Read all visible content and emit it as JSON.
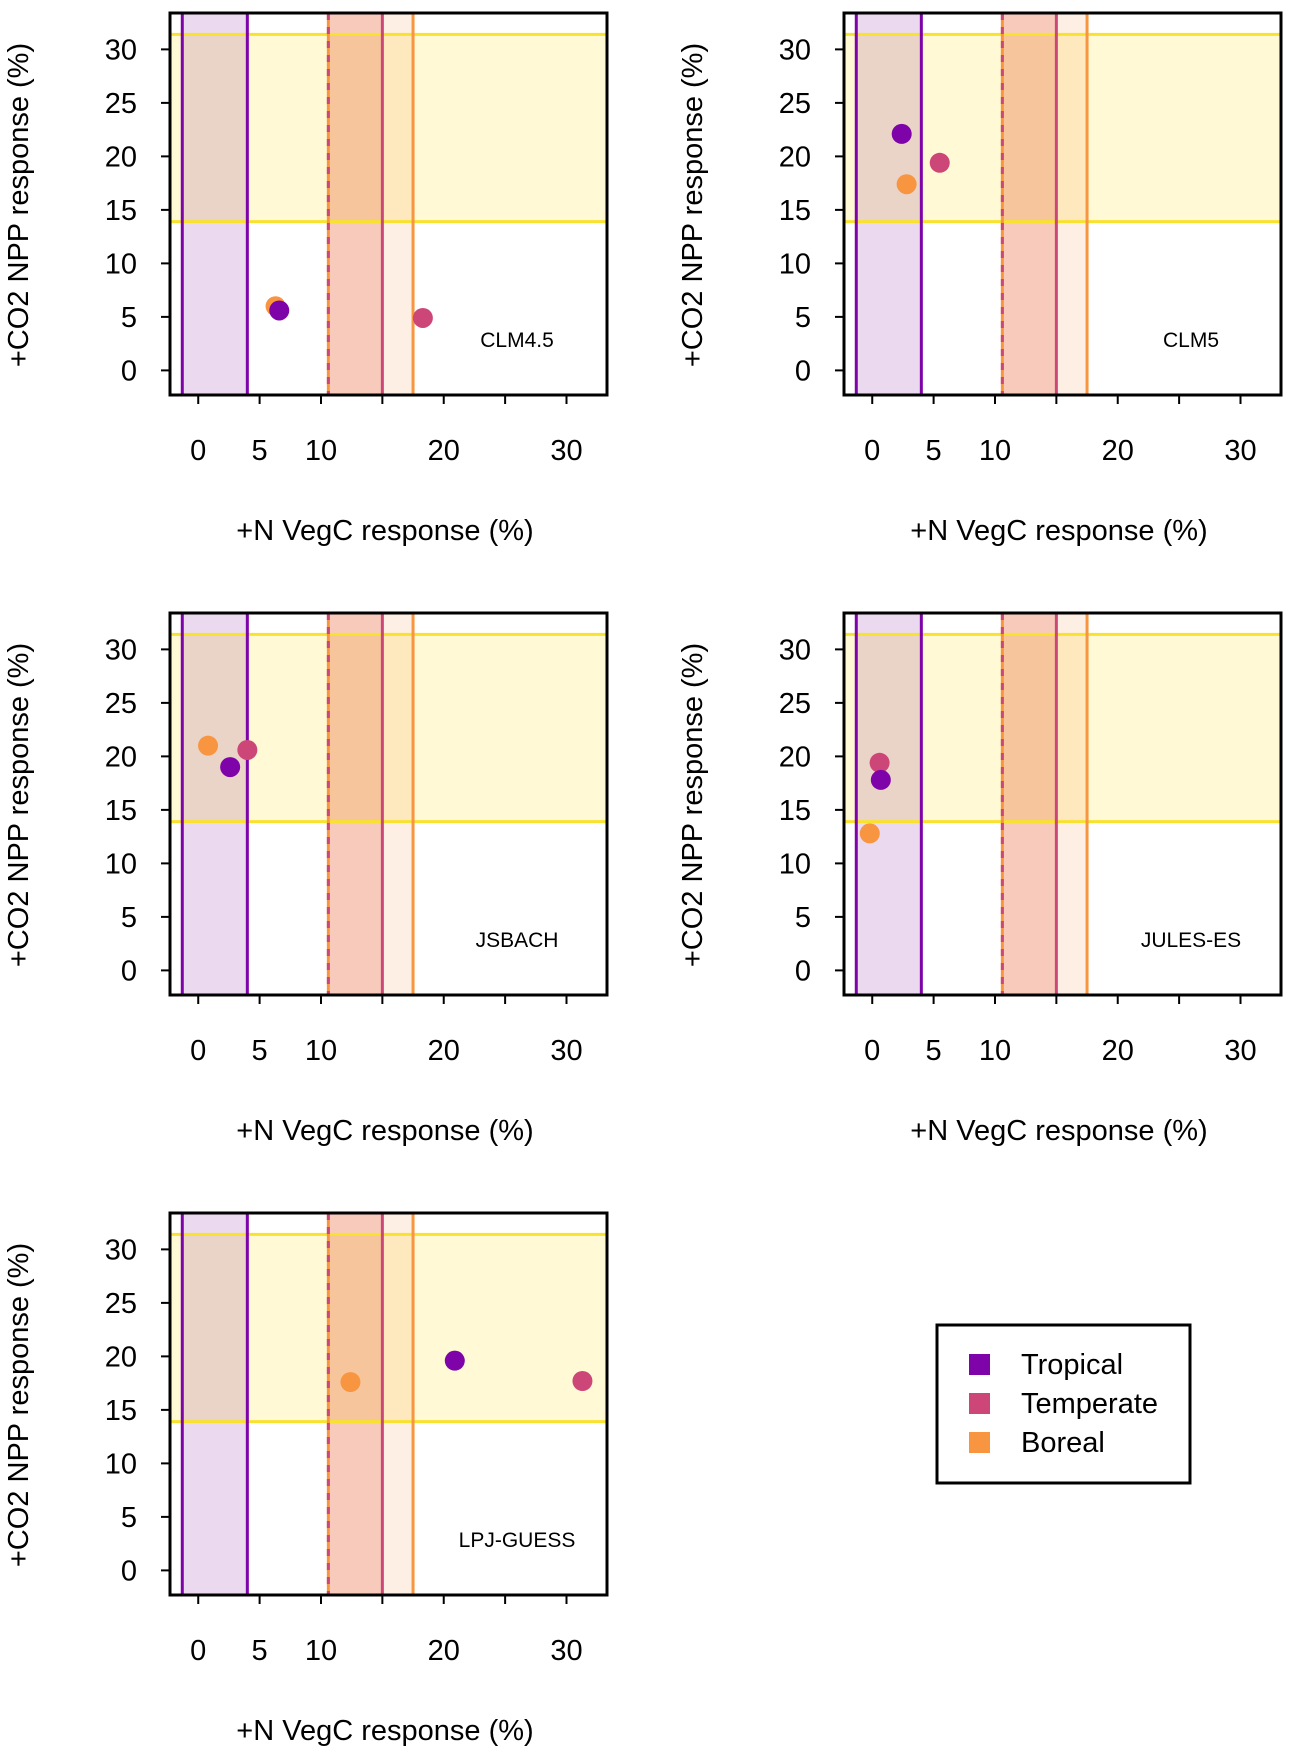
{
  "colors": {
    "Tropical": "#7E03A8",
    "Temperate": "#CC4778",
    "Boreal": "#F89540",
    "yellow_line": "#F9E22F",
    "yellow_fill": "#FFF9D6",
    "tropical_fill": "#E3CCEA",
    "temperate_fill": "#F6CBC2",
    "boreal_fill": "#FDEADB"
  },
  "chart_data": {
    "type": "scatter",
    "xlabel": "+N VegC response (%)",
    "ylabel": "+CO2 NPP response (%)",
    "xlim": [
      -2.3,
      33.3
    ],
    "ylim": [
      -2.3,
      33.4
    ],
    "x_ticks": [
      0,
      5,
      10,
      15,
      20,
      25,
      30
    ],
    "x_tick_labels": [
      "0",
      "5",
      "10",
      "",
      "20",
      "",
      "30"
    ],
    "y_ticks": [
      0,
      5,
      10,
      15,
      20,
      25,
      30
    ],
    "y_tick_labels": [
      "0",
      "5",
      "10",
      "15",
      "20",
      "25",
      "30"
    ],
    "grid": false,
    "observed_ranges": {
      "co2_npp": {
        "min": 13.9,
        "max": 31.4,
        "color_key": "yellow"
      },
      "n_vegc": [
        {
          "biome": "Tropical",
          "min": -1.3,
          "max": 4.0
        },
        {
          "biome": "Temperate",
          "min": 10.6,
          "max": 15.0
        },
        {
          "biome": "Boreal",
          "min": 10.6,
          "max": 17.5
        }
      ]
    },
    "legend": {
      "placement": "bottom-right",
      "entries": [
        "Tropical",
        "Temperate",
        "Boreal"
      ]
    },
    "panels": [
      {
        "model": "CLM4.5",
        "points": [
          {
            "biome": "Boreal",
            "x": 6.3,
            "y": 6.0
          },
          {
            "biome": "Tropical",
            "x": 6.6,
            "y": 5.6
          },
          {
            "biome": "Temperate",
            "x": 18.3,
            "y": 4.9
          }
        ]
      },
      {
        "model": "CLM5",
        "points": [
          {
            "biome": "Tropical",
            "x": 2.4,
            "y": 22.1
          },
          {
            "biome": "Temperate",
            "x": 5.5,
            "y": 19.4
          },
          {
            "biome": "Boreal",
            "x": 2.8,
            "y": 17.4
          }
        ]
      },
      {
        "model": "JSBACH",
        "points": [
          {
            "biome": "Boreal",
            "x": 0.8,
            "y": 21.0
          },
          {
            "biome": "Temperate",
            "x": 4.0,
            "y": 20.6
          },
          {
            "biome": "Tropical",
            "x": 2.6,
            "y": 19.0
          }
        ]
      },
      {
        "model": "JULES-ES",
        "points": [
          {
            "biome": "Temperate",
            "x": 0.6,
            "y": 19.4
          },
          {
            "biome": "Tropical",
            "x": 0.7,
            "y": 17.8
          },
          {
            "biome": "Boreal",
            "x": -0.2,
            "y": 12.8
          }
        ]
      },
      {
        "model": "LPJ-GUESS",
        "points": [
          {
            "biome": "Boreal",
            "x": 12.4,
            "y": 17.6
          },
          {
            "biome": "Tropical",
            "x": 20.9,
            "y": 19.6
          },
          {
            "biome": "Temperate",
            "x": 31.3,
            "y": 17.7
          }
        ]
      }
    ]
  }
}
